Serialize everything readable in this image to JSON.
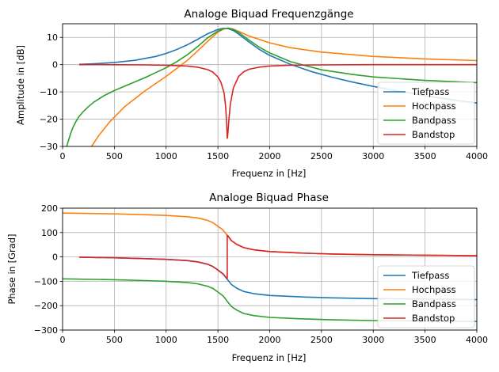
{
  "chart_data": [
    {
      "type": "line",
      "title": "Analoge Biquad Frequenzgänge",
      "xlabel": "Frequenz in [Hz]",
      "ylabel": "Amplitude in [dB]",
      "xlim": [
        0,
        4000
      ],
      "ylim": [
        -30,
        15
      ],
      "xticks": [
        0,
        500,
        1000,
        1500,
        2000,
        2500,
        3000,
        3500,
        4000
      ],
      "yticks": [
        -30,
        -20,
        -10,
        0,
        10
      ],
      "ytick_labels": [
        "−30",
        "−20",
        "−10",
        "0",
        "10"
      ],
      "grid": true,
      "legend_position": "lower-right",
      "series": [
        {
          "name": "Tiefpass",
          "color": "#1f77b4",
          "x": [
            160,
            300,
            500,
            700,
            900,
            1000,
            1100,
            1200,
            1300,
            1400,
            1500,
            1550,
            1600,
            1650,
            1700,
            1800,
            1900,
            2000,
            2200,
            2400,
            2600,
            2800,
            3000,
            3200,
            3500,
            3800,
            4000
          ],
          "y": [
            0.1,
            0.3,
            0.8,
            1.6,
            3.0,
            4.1,
            5.5,
            7.2,
            9.2,
            11.3,
            12.9,
            13.3,
            13.2,
            12.5,
            11.2,
            8.3,
            5.6,
            3.4,
            0.1,
            -2.5,
            -4.6,
            -6.4,
            -8.0,
            -9.4,
            -11.4,
            -13.1,
            -14.1
          ]
        },
        {
          "name": "Hochpass",
          "color": "#ff7f0e",
          "x": [
            280,
            350,
            450,
            600,
            800,
            1000,
            1200,
            1300,
            1400,
            1500,
            1550,
            1600,
            1650,
            1700,
            1800,
            2000,
            2200,
            2500,
            3000,
            3500,
            4000
          ],
          "y": [
            -30,
            -26,
            -21.2,
            -15.4,
            -9.5,
            -4.3,
            1.4,
            4.9,
            8.5,
            11.9,
            13.0,
            13.4,
            13.0,
            12.2,
            10.5,
            8.0,
            6.2,
            4.6,
            3.0,
            2.1,
            1.5
          ]
        },
        {
          "name": "Bandpass",
          "color": "#2ca02c",
          "x": [
            40,
            60,
            80,
            100,
            130,
            160,
            200,
            250,
            300,
            400,
            500,
            600,
            700,
            800,
            900,
            1000,
            1100,
            1200,
            1300,
            1400,
            1500,
            1550,
            1600,
            1650,
            1700,
            1800,
            1900,
            2000,
            2200,
            2500,
            2800,
            3000,
            3500,
            4000
          ],
          "y": [
            -30,
            -27.5,
            -25,
            -23,
            -20.8,
            -19,
            -17.2,
            -15.4,
            -13.8,
            -11.4,
            -9.5,
            -7.9,
            -6.3,
            -4.7,
            -2.9,
            -1.1,
            1.0,
            3.5,
            6.5,
            9.8,
            12.3,
            13.1,
            13.4,
            12.9,
            11.8,
            9.0,
            6.4,
            4.3,
            1.1,
            -1.9,
            -3.6,
            -4.5,
            -5.8,
            -6.6
          ]
        },
        {
          "name": "Bandstop",
          "color": "#d62728",
          "x": [
            160,
            400,
            800,
            1000,
            1200,
            1300,
            1400,
            1450,
            1500,
            1530,
            1560,
            1575,
            1585,
            1590,
            1595,
            1605,
            1620,
            1650,
            1700,
            1750,
            1800,
            1900,
            2000,
            2200,
            2500,
            3000,
            4000
          ],
          "y": [
            0,
            0,
            -0.1,
            -0.2,
            -0.5,
            -0.9,
            -1.8,
            -2.7,
            -4.5,
            -6.5,
            -10.5,
            -15.5,
            -22,
            -27,
            -26,
            -20.5,
            -14.5,
            -8.5,
            -4.3,
            -2.6,
            -1.7,
            -0.9,
            -0.5,
            -0.2,
            -0.1,
            0,
            0
          ]
        }
      ]
    },
    {
      "type": "line",
      "title": "Analoge Biquad Phase",
      "xlabel": "Frequenz in [Hz]",
      "ylabel": "Phase in [Grad]",
      "xlim": [
        0,
        4000
      ],
      "ylim": [
        -300,
        200
      ],
      "xticks": [
        0,
        500,
        1000,
        1500,
        2000,
        2500,
        3000,
        3500,
        4000
      ],
      "yticks": [
        -300,
        -200,
        -100,
        0,
        100,
        200
      ],
      "ytick_labels": [
        "−300",
        "−200",
        "−100",
        "0",
        "100",
        "200"
      ],
      "grid": true,
      "legend_position": "lower-right",
      "series": [
        {
          "name": "Tiefpass",
          "color": "#1f77b4",
          "x": [
            160,
            500,
            800,
            1000,
            1200,
            1300,
            1400,
            1450,
            1500,
            1550,
            1590,
            1630,
            1680,
            1750,
            1850,
            2000,
            2300,
            2600,
            3000,
            3500,
            4000
          ],
          "y": [
            -1,
            -3.5,
            -7,
            -10,
            -15,
            -20,
            -30,
            -39,
            -54,
            -70,
            -92,
            -113,
            -128,
            -142,
            -151,
            -158,
            -164,
            -168,
            -171,
            -173,
            -175
          ]
        },
        {
          "name": "Hochpass",
          "color": "#ff7f0e",
          "x": [
            0,
            500,
            800,
            1000,
            1200,
            1300,
            1400,
            1450,
            1500,
            1550,
            1590,
            1630,
            1680,
            1750,
            1850,
            2000,
            2300,
            2600,
            3000,
            3500,
            4000
          ],
          "y": [
            180,
            176.5,
            173,
            170,
            165,
            160,
            150,
            141,
            126,
            110,
            88,
            67,
            52,
            38,
            29,
            22,
            16,
            12,
            9,
            7,
            5
          ]
        },
        {
          "name": "Bandpass",
          "color": "#2ca02c",
          "x": [
            0,
            500,
            800,
            1000,
            1200,
            1300,
            1400,
            1450,
            1500,
            1550,
            1590,
            1630,
            1680,
            1750,
            1850,
            2000,
            2300,
            2600,
            3000,
            3500,
            4000
          ],
          "y": [
            -90,
            -93.5,
            -97,
            -100,
            -105,
            -110,
            -120,
            -129,
            -144,
            -160,
            -182,
            -203,
            -218,
            -232,
            -241,
            -248,
            -254,
            -258,
            -261,
            -263,
            -265
          ]
        },
        {
          "name": "Bandstop",
          "color": "#d62728",
          "x": [
            160,
            500,
            800,
            1000,
            1200,
            1300,
            1400,
            1450,
            1500,
            1550,
            1580,
            1590,
            1590,
            1600,
            1630,
            1680,
            1750,
            1850,
            2000,
            2300,
            2600,
            3000,
            3500,
            4000
          ],
          "y": [
            -1,
            -3.5,
            -7,
            -10,
            -15,
            -20,
            -30,
            -39,
            -54,
            -70,
            -85,
            -89,
            89,
            85,
            67,
            52,
            38,
            29,
            22,
            16,
            12,
            9,
            7,
            5
          ]
        }
      ]
    }
  ]
}
